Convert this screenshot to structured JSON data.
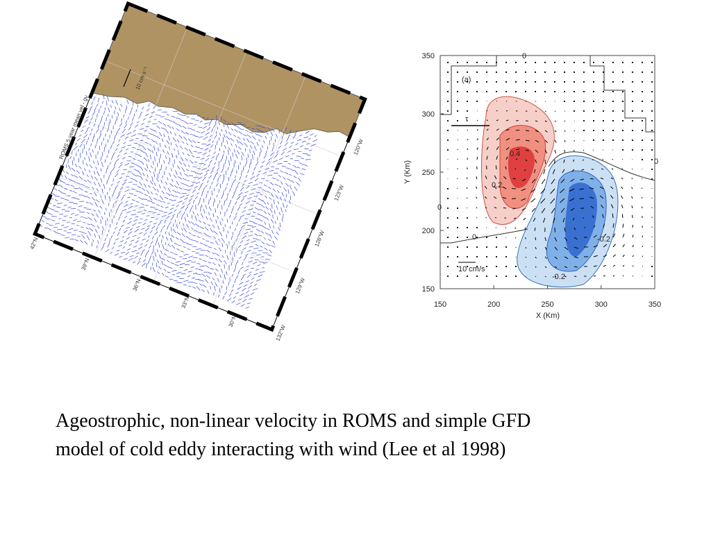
{
  "left_figure": {
    "title": "ROMS 5 year mean vel - gv",
    "scale_label": "10 cm s⁻¹",
    "lat_labels": [
      "42°N",
      "39°N",
      "36°N",
      "33°N",
      "30°N"
    ],
    "lon_labels": [
      "132°W",
      "129°W",
      "126°W",
      "123°W",
      "120°W"
    ]
  },
  "right_figure": {
    "panel_label": "(a)",
    "wind_label": "τ",
    "x_label": "X (Km)",
    "y_label": "Y (Km)",
    "xticks": [
      150,
      200,
      250,
      300,
      350
    ],
    "yticks": [
      150,
      200,
      250,
      300,
      350
    ],
    "xlim": [
      150,
      350
    ],
    "ylim": [
      150,
      350
    ],
    "contour_labels": [
      "0.4",
      "0.2",
      "-0.2",
      "-0.2",
      "0",
      "0",
      "0",
      "0"
    ],
    "scale_label": "10 cm/s"
  },
  "caption": [
    "Ageostrophic, non-linear velocity in ROMS and simple GFD",
    "model of cold eddy interacting with wind (Lee et al 1998)"
  ]
}
